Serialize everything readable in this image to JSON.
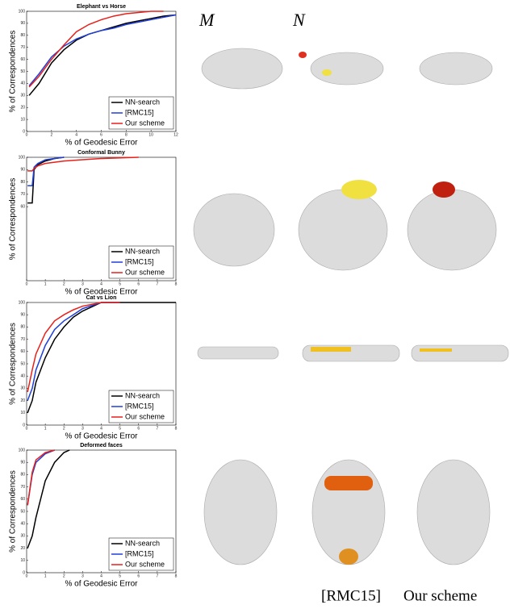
{
  "chart_data": [
    {
      "type": "line",
      "title": "Elephant vs Horse",
      "xlabel": "% of Geodesic Error",
      "ylabel": "% of Correspondences",
      "x": [
        0.2,
        1,
        2,
        3,
        4,
        5,
        6,
        7,
        8,
        9,
        10,
        11,
        12
      ],
      "xlim": [
        0,
        12
      ],
      "ylim": [
        0,
        100
      ],
      "xticks": [
        0,
        2,
        4,
        6,
        8,
        10,
        12
      ],
      "yticks": [
        0,
        10,
        20,
        30,
        40,
        50,
        60,
        70,
        80,
        90,
        100
      ],
      "legend": "lower right",
      "series": [
        {
          "name": "NN-search",
          "color": "#000000",
          "values": [
            30,
            40,
            57,
            68,
            76,
            81,
            84,
            87,
            90,
            92,
            94,
            96,
            97
          ]
        },
        {
          "name": "[RMC15]",
          "color": "#1f3fd8",
          "values": [
            38,
            48,
            62,
            71,
            77,
            81,
            84,
            86,
            89,
            91,
            93,
            95,
            97
          ]
        },
        {
          "name": "Our scheme",
          "color": "#e8201a",
          "values": [
            37,
            46,
            60,
            72,
            83,
            89,
            93,
            96,
            98,
            99,
            100,
            100,
            null
          ]
        }
      ]
    },
    {
      "type": "line",
      "title": "Conformal Bunny",
      "xlabel": "% of Geodesic Error",
      "ylabel": "% of Correspondences",
      "x": [
        0.05,
        0.3,
        0.4,
        0.6,
        1,
        1.5,
        2,
        3,
        4,
        5,
        6
      ],
      "xlim": [
        0,
        8
      ],
      "ylim": [
        0,
        100
      ],
      "xticks": [
        0,
        1,
        2,
        3,
        4,
        5,
        6,
        7,
        8
      ],
      "yticks": [
        60,
        70,
        80,
        90,
        100
      ],
      "legend": "lower right",
      "series": [
        {
          "name": "NN-search",
          "color": "#000000",
          "values": [
            63,
            63,
            90,
            94,
            97,
            99,
            100,
            null,
            null,
            null,
            null
          ]
        },
        {
          "name": "[RMC15]",
          "color": "#1f3fd8",
          "values": [
            77,
            77,
            92,
            95,
            98,
            99,
            100,
            null,
            null,
            null,
            null
          ]
        },
        {
          "name": "Our scheme",
          "color": "#e8201a",
          "values": [
            89,
            89,
            91,
            93,
            95,
            96,
            97,
            98,
            99,
            99.5,
            100
          ]
        }
      ]
    },
    {
      "type": "line",
      "title": "Cat vs Lion",
      "xlabel": "% of Geodesic Error",
      "ylabel": "% of Correspondences",
      "x": [
        0.05,
        0.3,
        0.5,
        1,
        1.5,
        2,
        2.5,
        3,
        4,
        5,
        6,
        8
      ],
      "xlim": [
        0,
        8
      ],
      "ylim": [
        0,
        100
      ],
      "xticks": [
        0,
        1,
        2,
        3,
        4,
        5,
        6,
        7,
        8
      ],
      "yticks": [
        0,
        10,
        20,
        30,
        40,
        50,
        60,
        70,
        80,
        90,
        100
      ],
      "legend": "lower right",
      "series": [
        {
          "name": "NN-search",
          "color": "#000000",
          "values": [
            10,
            20,
            35,
            55,
            70,
            80,
            88,
            93,
            100,
            100,
            100,
            100
          ]
        },
        {
          "name": "[RMC15]",
          "color": "#1f3fd8",
          "values": [
            20,
            30,
            45,
            65,
            78,
            85,
            90,
            95,
            100,
            100,
            null,
            null
          ]
        },
        {
          "name": "Our scheme",
          "color": "#e8201a",
          "values": [
            27,
            45,
            58,
            75,
            85,
            90,
            94,
            97,
            100,
            100,
            null,
            null
          ]
        }
      ]
    },
    {
      "type": "line",
      "title": "Deformed faces",
      "xlabel": "% of Geodesic Error",
      "ylabel": "% of Correspondences",
      "x": [
        0.05,
        0.3,
        0.5,
        1,
        1.5,
        2,
        2.3
      ],
      "xlim": [
        0,
        8
      ],
      "ylim": [
        0,
        100
      ],
      "xticks": [
        0,
        1,
        2,
        3,
        4,
        5,
        6,
        7,
        8
      ],
      "yticks": [
        0,
        10,
        20,
        30,
        40,
        50,
        60,
        70,
        80,
        90,
        100
      ],
      "legend": "lower right",
      "series": [
        {
          "name": "NN-search",
          "color": "#000000",
          "values": [
            20,
            30,
            45,
            75,
            90,
            98,
            100
          ]
        },
        {
          "name": "[RMC15]",
          "color": "#1f3fd8",
          "values": [
            55,
            80,
            90,
            97,
            100,
            null,
            null
          ]
        },
        {
          "name": "Our scheme",
          "color": "#e8201a",
          "values": [
            55,
            82,
            92,
            98,
            100,
            null,
            null
          ]
        }
      ]
    }
  ],
  "figure": {
    "column_labels": [
      "M",
      "N"
    ],
    "bottom_labels": [
      "[RMC15]",
      "Our scheme"
    ]
  }
}
